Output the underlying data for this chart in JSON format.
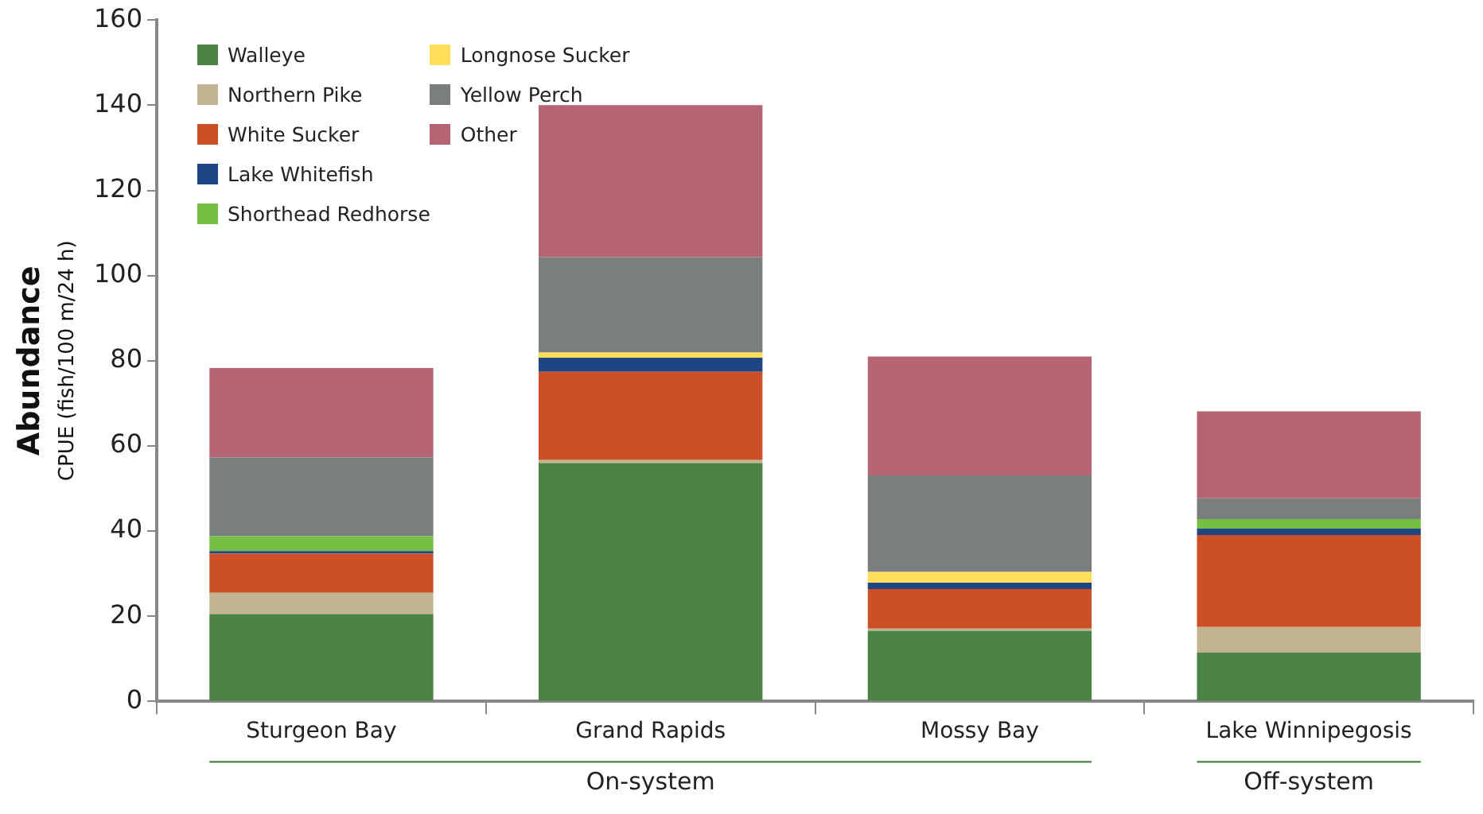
{
  "chart_data": {
    "type": "bar",
    "stacked": true,
    "ylabel": "Abundance\nCPUE (fish/100 m/24 h)",
    "categories": [
      "Sturgeon Bay",
      "Grand Rapids",
      "Mossy Bay",
      "Lake Winnipegosis"
    ],
    "series": [
      {
        "name": "Walleye",
        "color": "#4b8345",
        "values": [
          20.5,
          56,
          16.6,
          11.5
        ]
      },
      {
        "name": "Northern Pike",
        "color": "#c2b490",
        "values": [
          5,
          0.7,
          0.5,
          6
        ]
      },
      {
        "name": "White Sucker",
        "color": "#cc4f26",
        "values": [
          9.2,
          20.7,
          9.3,
          21.6
        ]
      },
      {
        "name": "Lake Whitefish",
        "color": "#1f4585",
        "values": [
          0.6,
          3.3,
          1.5,
          1.5
        ]
      },
      {
        "name": "Shorthead Redhorse",
        "color": "#74bf44",
        "values": [
          3.5,
          0,
          0,
          2.2
        ]
      },
      {
        "name": "Longnose Sucker",
        "color": "#ffdf5a",
        "values": [
          0,
          1.2,
          2.5,
          0
        ]
      },
      {
        "name": "Yellow Perch",
        "color": "#7b7e7e",
        "values": [
          18.5,
          22.4,
          22.7,
          4.9
        ]
      },
      {
        "name": "Other",
        "color": "#b46571",
        "values": [
          21,
          35.7,
          27.9,
          20.4
        ]
      }
    ],
    "ylim": [
      0,
      160
    ],
    "yticks": [
      0,
      20,
      40,
      60,
      80,
      100,
      120,
      140,
      160
    ],
    "grid": false,
    "legend": "top left",
    "annotations": [
      "On-system",
      "Off-system"
    ]
  }
}
